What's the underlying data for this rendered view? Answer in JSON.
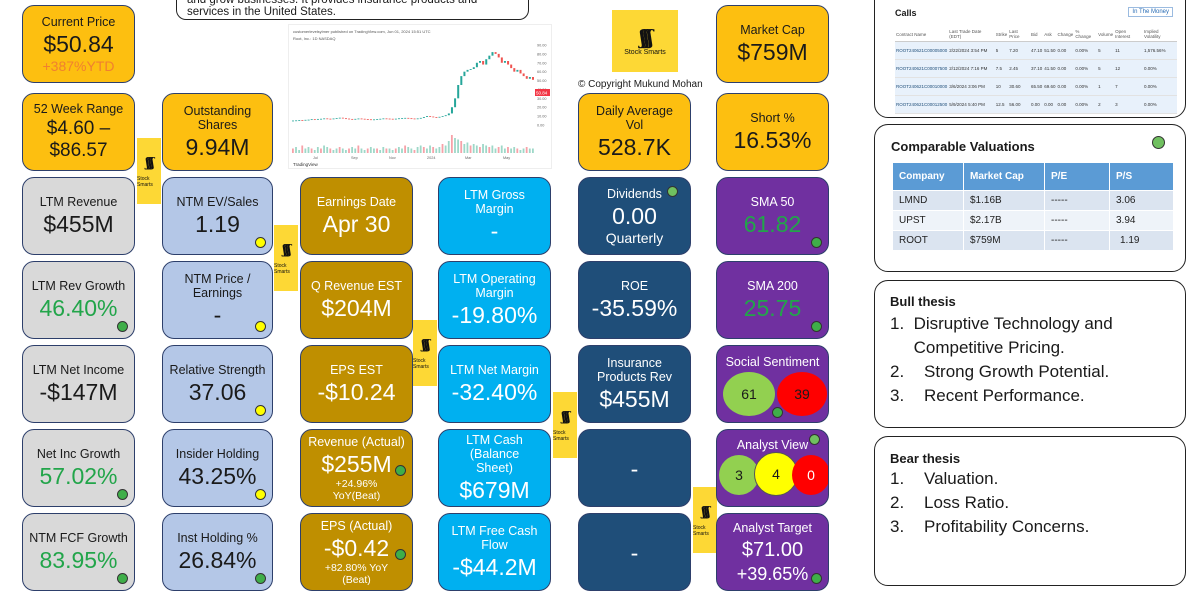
{
  "colors": {
    "gold": "#fdbf10",
    "gray": "#d9d9d9",
    "light_blue": "#b4c7e7",
    "dark_gold": "#bf8f00",
    "cyan": "#00b0f0",
    "navy": "#1f4e79",
    "purple": "#7030a0",
    "positive_green": "#22a54a"
  },
  "header": {
    "description_tail": "and grow businesses. It provides insurance products and services in the United States.",
    "copyright": "© Copyright Mukund Mohan",
    "logo_text": "Stock Smarts"
  },
  "tiles": {
    "current_price": {
      "label": "Current Price",
      "value": "$50.84",
      "sub": "+387%YTD"
    },
    "week52": {
      "label": "52 Week Range",
      "value": "$4.60 –",
      "value2": "$86.57"
    },
    "shares": {
      "label": "Outstanding Shares",
      "value": "9.94M"
    },
    "ltm_rev": {
      "label": "LTM Revenue",
      "value": "$455M"
    },
    "ntm_ev": {
      "label": "NTM EV/Sales",
      "value": "1.19"
    },
    "earnings_date": {
      "label": "Earnings Date",
      "value": "Apr 30"
    },
    "gross_margin": {
      "label": "LTM Gross Margin",
      "value": "-"
    },
    "dividends": {
      "label": "Dividends",
      "value": "0.00",
      "sub": "Quarterly"
    },
    "sma50": {
      "label": "SMA 50",
      "value": "61.82"
    },
    "rev_growth": {
      "label": "LTM Rev Growth",
      "value": "46.40%"
    },
    "ntm_pe": {
      "label": "NTM Price / Earnings",
      "value": "-"
    },
    "q_rev_est": {
      "label": "Q Revenue EST",
      "value": "$204M"
    },
    "op_margin": {
      "label": "LTM Operating Margin",
      "value": "-19.80%"
    },
    "roe": {
      "label": "ROE",
      "value": "-35.59%"
    },
    "sma200": {
      "label": "SMA 200",
      "value": "25.75"
    },
    "net_income": {
      "label": "LTM Net Income",
      "value": "-$147M"
    },
    "rel_strength": {
      "label": "Relative Strength",
      "value": "37.06"
    },
    "eps_est": {
      "label": "EPS EST",
      "value": "-$10.24"
    },
    "net_margin": {
      "label": "LTM Net Margin",
      "value": "-32.40%"
    },
    "ins_rev": {
      "label": "Insurance Products Rev",
      "value": "$455M"
    },
    "social": {
      "label": "Social Sentiment",
      "positive": "61",
      "negative": "39"
    },
    "net_inc_growth": {
      "label": "Net Inc Growth",
      "value": "57.02%"
    },
    "insider": {
      "label": "Insider Holding",
      "value": "43.25%"
    },
    "rev_actual": {
      "label": "Revenue (Actual)",
      "value": "$255M",
      "sub": "+24.96%",
      "sub2": "YoY(Beat)"
    },
    "ltm_cash": {
      "label": "LTM Cash (Balance Sheet)",
      "value": "$679M"
    },
    "empty1": {
      "value": "-"
    },
    "analyst_view": {
      "label": "Analyst View",
      "buy": "3",
      "hold": "4",
      "sell": "0"
    },
    "fcf_growth": {
      "label": "NTM FCF Growth",
      "value": "83.95%"
    },
    "inst_holding": {
      "label": "Inst Holding %",
      "value": "26.84%"
    },
    "eps_actual": {
      "label": "EPS (Actual)",
      "value": "-$0.42",
      "sub": "+82.80% YoY",
      "sub2": "(Beat)"
    },
    "fcf": {
      "label": "LTM Free Cash Flow",
      "value": "-$44.2M"
    },
    "empty2": {
      "value": "-"
    },
    "analyst_target": {
      "label": "Analyst Target",
      "value": "$71.00",
      "sub": "+39.65%"
    },
    "market_cap": {
      "label": "Market Cap",
      "value": "$759M"
    },
    "daily_vol": {
      "label": "Daily Average Vol",
      "value": "528.7K"
    },
    "short_pct": {
      "label": "Short %",
      "value": "16.53%"
    }
  },
  "calls": {
    "title": "Calls",
    "filter": "In The Money",
    "headers": [
      "Contract Name",
      "Last Trade Date (EDT)",
      "Strike",
      "Last Price",
      "Bid",
      "Ask",
      "Change",
      "% Change",
      "Volume",
      "Open Interest",
      "Implied Volatility"
    ],
    "rows": [
      [
        "ROOT240621C00005000",
        "2/22/2024 3:54 PM",
        "5",
        "7.20",
        "47.10",
        "51.50",
        "0.00",
        "0.00%",
        "5",
        "11",
        "1,576.56%"
      ],
      [
        "ROOT240621C00007500",
        "2/12/2024 7:16 PM",
        "7.5",
        "2.45",
        "37.10",
        "41.50",
        "0.00",
        "0.00%",
        "5",
        "12",
        "0.00%"
      ],
      [
        "ROOT240621C00010000",
        "3/6/2024 3:06 PM",
        "10",
        "30.60",
        "65.50",
        "69.60",
        "0.00",
        "0.00%",
        "1",
        "7",
        "0.00%"
      ],
      [
        "ROOT240621C00012500",
        "5/9/2024 5:40 PM",
        "12.5",
        "56.00",
        "0.00",
        "0.00",
        "0.00",
        "0.00%",
        "2",
        "3",
        "0.00%"
      ]
    ]
  },
  "comparables": {
    "title": "Comparable Valuations",
    "headers": [
      "Company",
      "Market Cap",
      "P/E",
      "P/S"
    ],
    "rows": [
      [
        "LMND",
        "$1.16B",
        "-----",
        "3.06"
      ],
      [
        "UPST",
        "$2.17B",
        "-----",
        "3.94"
      ],
      [
        "ROOT",
        "$759M",
        "-----",
        "1.19"
      ]
    ]
  },
  "bull": {
    "title": "Bull thesis",
    "items": [
      "Disruptive Technology and Competitive Pricing.",
      "Strong Growth Potential.",
      "Recent Performance."
    ]
  },
  "bear": {
    "title": "Bear thesis",
    "items": [
      "Valuation.",
      "Loss Ratio.",
      "Profitability Concerns."
    ]
  },
  "price_chart": {
    "header": "customerlevelsylmer published on TradingView.com, Jun 01, 2024 15:51 UTC",
    "ticker_line": "Root, Inc.: 1D NASDAQ",
    "y_ticks": [
      "90.00",
      "80.00",
      "70.00",
      "60.00",
      "50.00",
      "40.00",
      "30.00",
      "20.00",
      "10.00",
      "0.00"
    ],
    "x_ticks": [
      "Jul",
      "Sep",
      "Nov",
      "2024",
      "Mar",
      "May"
    ],
    "last_label": "50.84",
    "footer": "TradingView",
    "closes": [
      5,
      5.2,
      5.5,
      5.3,
      5.8,
      6,
      6.5,
      6.2,
      6.8,
      7,
      7.4,
      7.1,
      6.9,
      7.3,
      7.8,
      8.2,
      7.6,
      7.2,
      6.8,
      6.5,
      6.9,
      7.3,
      7,
      6.7,
      6.4,
      6.1,
      6.3,
      6.6,
      7,
      7.4,
      7.2,
      7,
      6.8,
      7.1,
      7.5,
      7.8,
      8,
      7.6,
      7.3,
      7.1,
      7.4,
      8,
      9,
      10,
      9.5,
      9,
      8.7,
      9.2,
      10,
      11,
      13,
      20,
      30,
      45,
      55,
      60,
      62,
      63,
      65,
      70,
      72,
      68,
      74,
      78,
      82,
      80,
      76,
      70,
      72,
      68,
      64,
      60,
      62,
      58,
      55,
      52,
      54,
      50.84
    ],
    "volume": [
      3,
      4,
      2,
      5,
      3,
      4,
      3,
      2,
      4,
      3,
      5,
      4,
      3,
      2,
      3,
      4,
      3,
      2,
      3,
      4,
      3,
      5,
      3,
      2,
      3,
      4,
      3,
      3,
      2,
      4,
      3,
      3,
      2,
      3,
      4,
      3,
      5,
      4,
      3,
      2,
      4,
      5,
      4,
      3,
      5,
      4,
      3,
      4,
      6,
      5,
      8,
      12,
      10,
      9,
      8,
      6,
      7,
      5,
      6,
      5,
      4,
      6,
      5,
      4,
      5,
      3,
      4,
      5,
      3,
      4,
      3,
      4,
      3,
      2,
      3,
      4,
      3,
      3
    ]
  }
}
